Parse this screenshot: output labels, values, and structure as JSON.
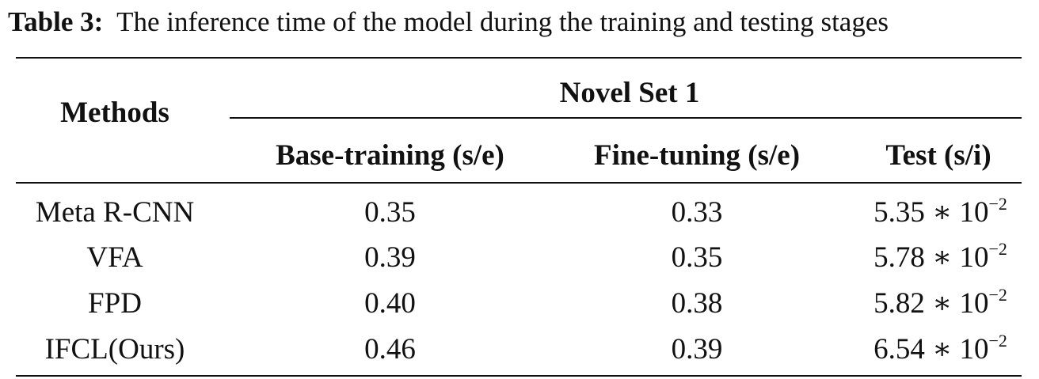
{
  "caption": {
    "label": "Table 3:",
    "text": "The inference time of the model during the training and testing stages"
  },
  "table": {
    "methods_header": "Methods",
    "group_header": "Novel Set 1",
    "columns": [
      "Base-training (s/e)",
      "Fine-tuning (s/e)",
      "Test (s/i)"
    ],
    "rows": [
      {
        "method": "Meta R-CNN",
        "base": "0.35",
        "fine": "0.33",
        "test": "5.35 ∗ 10",
        "test_exp": "−2"
      },
      {
        "method": "VFA",
        "base": "0.39",
        "fine": "0.35",
        "test": "5.78 ∗ 10",
        "test_exp": "−2"
      },
      {
        "method": "FPD",
        "base": "0.40",
        "fine": "0.38",
        "test": "5.82 ∗ 10",
        "test_exp": "−2"
      },
      {
        "method": "IFCL(Ours)",
        "base": "0.46",
        "fine": "0.39",
        "test": "6.54 ∗ 10",
        "test_exp": "−2"
      }
    ]
  }
}
